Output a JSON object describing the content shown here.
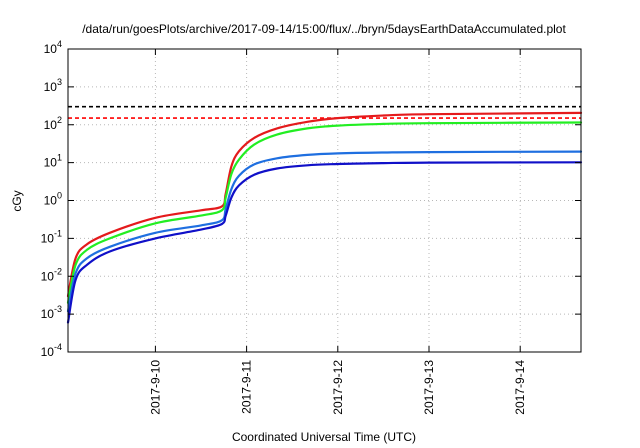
{
  "chart_data": {
    "type": "line",
    "title": "/data/run/goesPlots/archive/2017-09-14/15:00/flux/../bryn/5daysEarthDataAccumulated.plot",
    "xlabel": "Coordinated Universal Time (UTC)",
    "ylabel": "cGy",
    "yscale": "log",
    "ylim": [
      0.0001,
      10000
    ],
    "xlim": [
      "2017-09-09 01:00",
      "2017-09-14 16:00"
    ],
    "grid": true,
    "x_ticks": [
      "2017-9-10",
      "2017-9-11",
      "2017-9-12",
      "2017-9-13",
      "2017-9-14"
    ],
    "y_ticks": [
      {
        "value": 0.0001,
        "base": "10",
        "exp": "-4"
      },
      {
        "value": 0.001,
        "base": "10",
        "exp": "-3"
      },
      {
        "value": 0.01,
        "base": "10",
        "exp": "-2"
      },
      {
        "value": 0.1,
        "base": "10",
        "exp": "-1"
      },
      {
        "value": 1,
        "base": "10",
        "exp": "0"
      },
      {
        "value": 10,
        "base": "10",
        "exp": "1"
      },
      {
        "value": 100,
        "base": "10",
        "exp": "2"
      },
      {
        "value": 1000,
        "base": "10",
        "exp": "3"
      },
      {
        "value": 10000,
        "base": "10",
        "exp": "4"
      }
    ],
    "thresholds": [
      {
        "value": 300,
        "color": "#000000",
        "style": "dashed"
      },
      {
        "value": 150,
        "color": "#ff0000",
        "style": "dashed"
      }
    ],
    "series": [
      {
        "color": "#e41a1c",
        "x": [
          "2017-09-09 01:00",
          "2017-09-09 03:00",
          "2017-09-09 06:00",
          "2017-09-09 12:00",
          "2017-09-10 00:00",
          "2017-09-10 12:00",
          "2017-09-10 17:30",
          "2017-09-10 18:30",
          "2017-09-10 20:00",
          "2017-09-10 22:00",
          "2017-09-11 02:00",
          "2017-09-11 08:00",
          "2017-09-11 16:00",
          "2017-09-12 00:00",
          "2017-09-12 12:00",
          "2017-09-13 00:00",
          "2017-09-14 16:00"
        ],
        "y": [
          0.003,
          0.03,
          0.07,
          0.14,
          0.35,
          0.55,
          0.7,
          1.5,
          8,
          20,
          45,
          80,
          120,
          150,
          175,
          190,
          205
        ]
      },
      {
        "color": "#22ee22",
        "x": [
          "2017-09-09 01:00",
          "2017-09-09 03:00",
          "2017-09-09 06:00",
          "2017-09-09 12:00",
          "2017-09-10 00:00",
          "2017-09-10 12:00",
          "2017-09-10 17:30",
          "2017-09-10 18:30",
          "2017-09-10 20:00",
          "2017-09-10 22:00",
          "2017-09-11 02:00",
          "2017-09-11 08:00",
          "2017-09-11 16:00",
          "2017-09-12 00:00",
          "2017-09-12 12:00",
          "2017-09-13 00:00",
          "2017-09-14 16:00"
        ],
        "y": [
          0.002,
          0.02,
          0.05,
          0.1,
          0.25,
          0.4,
          0.55,
          1.2,
          5,
          12,
          30,
          55,
          80,
          95,
          105,
          110,
          115
        ]
      },
      {
        "color": "#1f6fe0",
        "x": [
          "2017-09-09 01:00",
          "2017-09-09 03:00",
          "2017-09-09 06:00",
          "2017-09-09 12:00",
          "2017-09-10 00:00",
          "2017-09-10 12:00",
          "2017-09-10 17:30",
          "2017-09-10 18:30",
          "2017-09-10 20:00",
          "2017-09-10 22:00",
          "2017-09-11 02:00",
          "2017-09-11 08:00",
          "2017-09-11 16:00",
          "2017-09-12 00:00",
          "2017-09-12 12:00",
          "2017-09-13 00:00",
          "2017-09-14 16:00"
        ],
        "y": [
          0.0012,
          0.012,
          0.03,
          0.06,
          0.14,
          0.22,
          0.3,
          0.6,
          2,
          4.5,
          9,
          13,
          16,
          17.5,
          18.5,
          19,
          19.5
        ]
      },
      {
        "color": "#1010c8",
        "x": [
          "2017-09-09 01:00",
          "2017-09-09 03:00",
          "2017-09-09 06:00",
          "2017-09-09 12:00",
          "2017-09-10 00:00",
          "2017-09-10 12:00",
          "2017-09-10 17:30",
          "2017-09-10 18:30",
          "2017-09-10 20:00",
          "2017-09-10 22:00",
          "2017-09-11 02:00",
          "2017-09-11 08:00",
          "2017-09-11 16:00",
          "2017-09-12 00:00",
          "2017-09-12 12:00",
          "2017-09-13 00:00",
          "2017-09-14 16:00"
        ],
        "y": [
          0.0006,
          0.008,
          0.02,
          0.045,
          0.1,
          0.17,
          0.24,
          0.4,
          1.2,
          2.5,
          4.8,
          7,
          8.5,
          9.2,
          9.7,
          10,
          10.2
        ]
      }
    ]
  }
}
